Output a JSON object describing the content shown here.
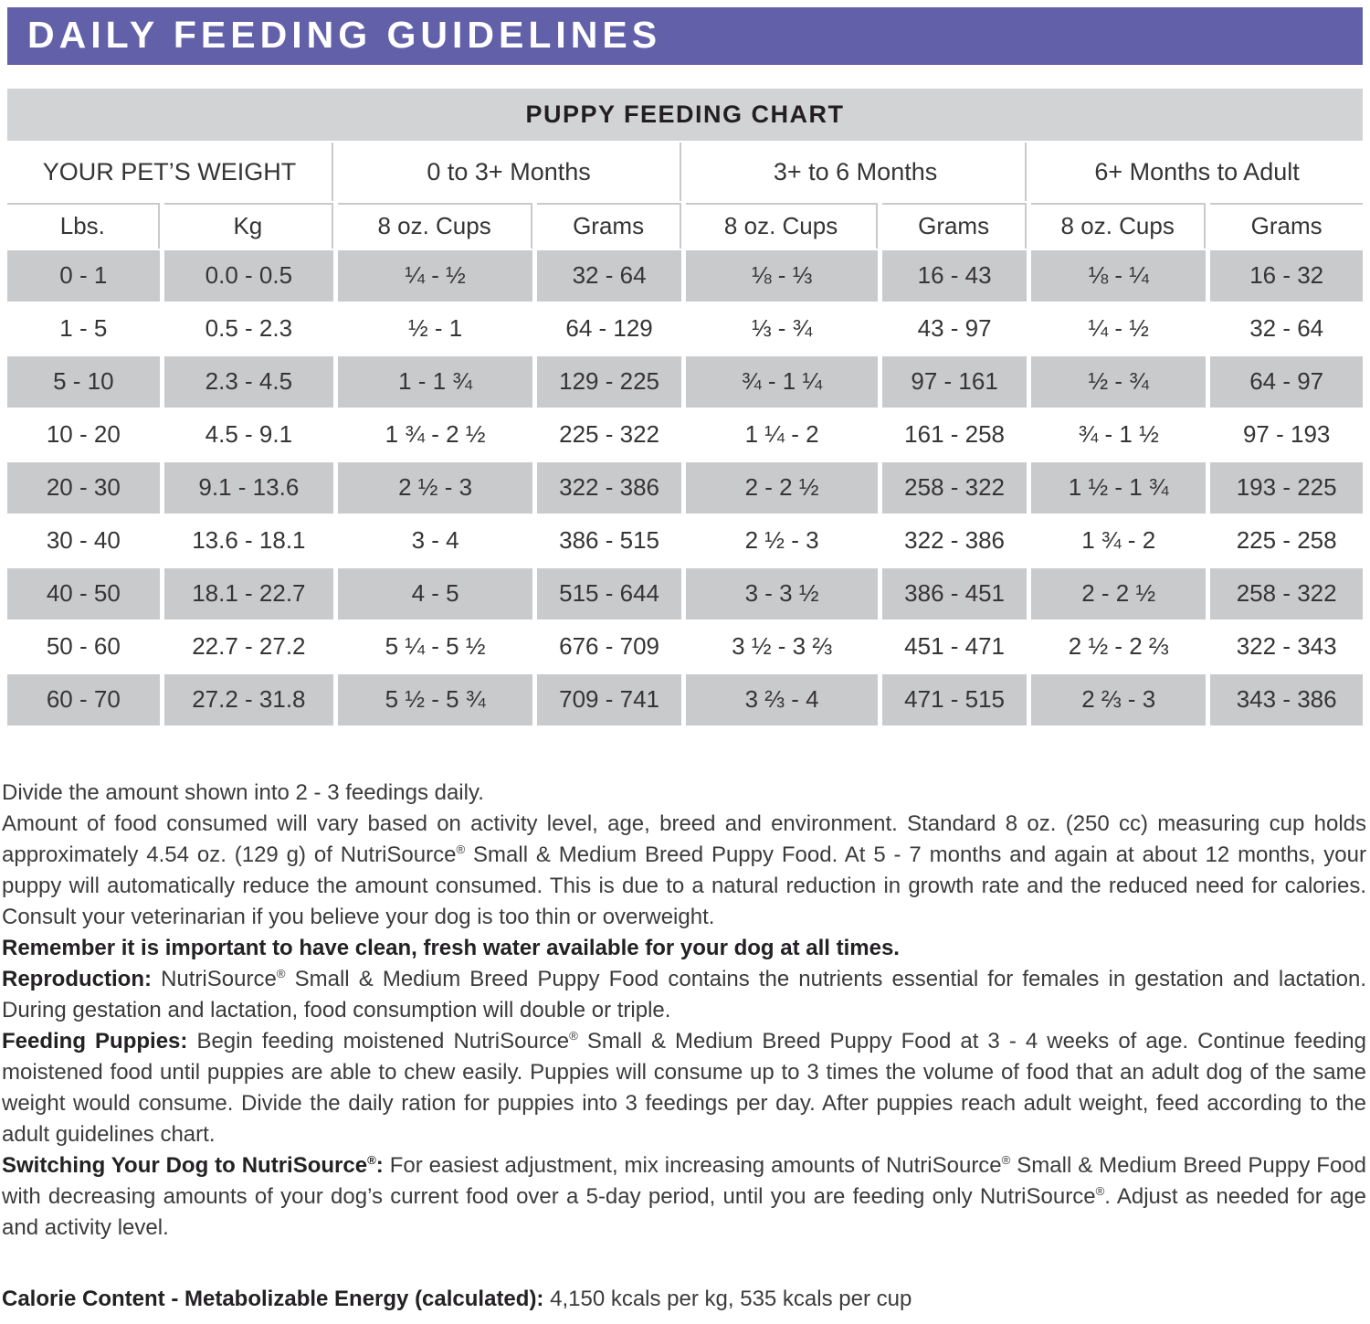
{
  "colors": {
    "accent_purple": "#6260A9",
    "chart_bar_gray": "#d2d3d5",
    "row_gray": "#c9cacc",
    "text_dark": "#231f20"
  },
  "header": {
    "title": "DAILY FEEDING GUIDELINES"
  },
  "table": {
    "title": "PUPPY FEEDING CHART",
    "groups": [
      "YOUR PET’S WEIGHT",
      "0 to 3+ Months",
      "3+ to 6 Months",
      "6+ Months to Adult"
    ],
    "columns": [
      "Lbs.",
      "Kg",
      "8 oz. Cups",
      "Grams",
      "8 oz. Cups",
      "Grams",
      "8 oz. Cups",
      "Grams"
    ],
    "column_keys": [
      "lbs",
      "kg",
      "cups-0-3",
      "grams-0-3",
      "cups-3-6",
      "grams-3-6",
      "cups-6-adult",
      "grams-6-adult"
    ],
    "rows": [
      [
        "0 - 1",
        "0.0 - 0.5",
        "¼ - ½",
        "32 - 64",
        "⅛ - ⅓",
        "16 - 43",
        "⅛ - ¼",
        "16 - 32"
      ],
      [
        "1 - 5",
        "0.5 - 2.3",
        "½ - 1",
        "64 - 129",
        "⅓ - ¾",
        "43 - 97",
        "¼ - ½",
        "32 - 64"
      ],
      [
        "5 - 10",
        "2.3 - 4.5",
        "1 - 1 ¾",
        "129 - 225",
        "¾ - 1 ¼",
        "97 - 161",
        "½ - ¾",
        "64 - 97"
      ],
      [
        "10 - 20",
        "4.5 - 9.1",
        "1 ¾ - 2 ½",
        "225 - 322",
        "1 ¼ - 2",
        "161 - 258",
        "¾ - 1 ½",
        "97 - 193"
      ],
      [
        "20 - 30",
        "9.1 - 13.6",
        "2 ½ - 3",
        "322 - 386",
        "2 - 2 ½",
        "258 - 322",
        "1 ½ - 1 ¾",
        "193 - 225"
      ],
      [
        "30 - 40",
        "13.6 - 18.1",
        "3 - 4",
        "386 - 515",
        "2 ½ - 3",
        "322 - 386",
        "1 ¾ - 2",
        "225 - 258"
      ],
      [
        "40 - 50",
        "18.1 - 22.7",
        "4 - 5",
        "515 - 644",
        "3 - 3 ½",
        "386 - 451",
        "2 - 2 ½",
        "258 - 322"
      ],
      [
        "50 - 60",
        "22.7 - 27.2",
        "5 ¼ - 5 ½",
        "676 - 709",
        "3 ½ - 3 ⅔",
        "451 - 471",
        "2 ½ - 2 ⅔",
        "322 - 343"
      ],
      [
        "60 - 70",
        "27.2 - 31.8",
        "5 ½ - 5 ¾",
        "709 - 741",
        "3 ⅔ - 4",
        "471 - 515",
        "2 ⅔ - 3",
        "343 - 386"
      ]
    ]
  },
  "notes": [
    {
      "segments": [
        {
          "b": false,
          "t": "Divide the amount shown into 2 - 3 feedings daily."
        }
      ]
    },
    {
      "segments": [
        {
          "b": false,
          "t": "Amount of food consumed will vary based on activity level, age, breed and environment. Standard 8 oz. (250 cc) measuring cup holds approximately 4.54 oz. (129 g) of NutriSource® Small & Medium Breed Puppy Food. At 5 - 7 months and again at about 12 months, your puppy will automatically reduce the amount consumed. This is due to a natural reduction in growth rate and the reduced need for calories. Consult your veterinarian if you believe your dog is too thin or overweight."
        }
      ]
    },
    {
      "segments": [
        {
          "b": true,
          "t": "Remember it is important to have clean, fresh water available for your dog at all times."
        }
      ]
    },
    {
      "segments": [
        {
          "b": true,
          "t": "Reproduction:"
        },
        {
          "b": false,
          "t": " NutriSource® Small & Medium Breed Puppy Food contains the nutrients essential for females in gestation and lactation. During gestation and lactation, food consumption will double or triple."
        }
      ]
    },
    {
      "segments": [
        {
          "b": true,
          "t": "Feeding Puppies:"
        },
        {
          "b": false,
          "t": " Begin feeding moistened NutriSource® Small & Medium Breed Puppy Food at 3 - 4 weeks of age. Continue feeding moistened food until puppies are able to chew easily. Puppies will consume up to 3 times the volume of food that an adult dog of the same weight would consume. Divide the daily ration for puppies into 3 feedings per day. After puppies reach adult weight, feed according to the adult guidelines chart."
        }
      ]
    },
    {
      "segments": [
        {
          "b": true,
          "t": "Switching Your Dog to NutriSource®:"
        },
        {
          "b": false,
          "t": " For easiest adjustment, mix increasing amounts of NutriSource® Small & Medium Breed Puppy Food with decreasing amounts of your dog’s current food over a 5-day period, until you are feeding only NutriSource®. Adjust as needed for age and activity level."
        }
      ]
    }
  ],
  "calorie_line": {
    "segments": [
      {
        "b": true,
        "t": "Calorie Content - Metabolizable Energy (calculated):"
      },
      {
        "b": false,
        "t": " 4,150 kcals per kg, 535 kcals per cup"
      }
    ]
  }
}
